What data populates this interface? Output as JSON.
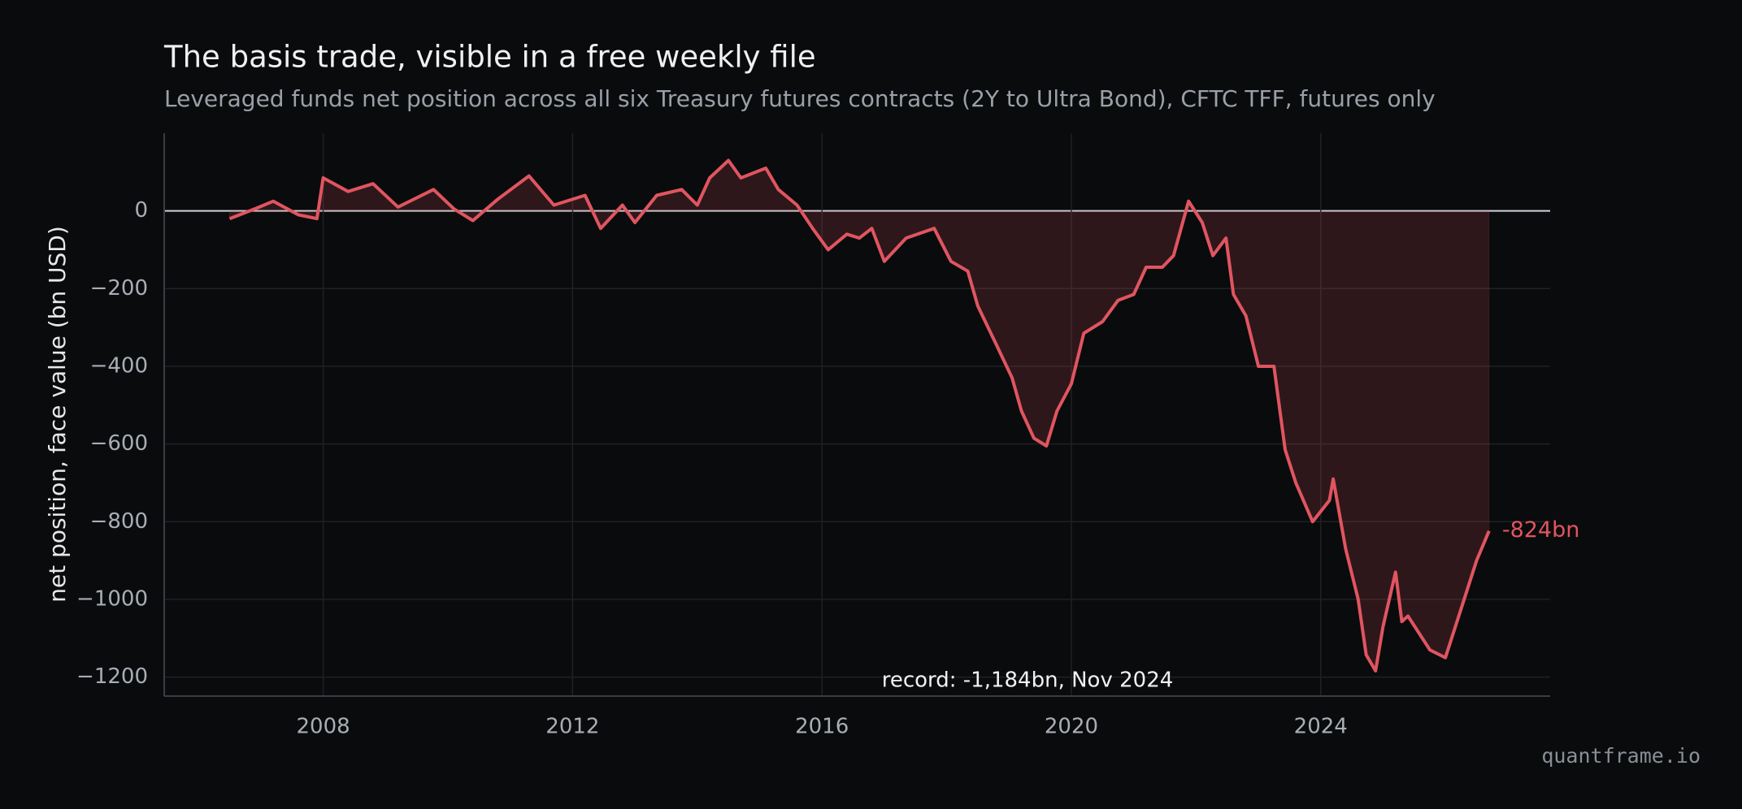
{
  "chart_data": {
    "type": "line",
    "title": "The basis trade, visible in a free weekly file",
    "subtitle": "Leveraged funds net position across all six Treasury futures contracts (2Y to Ultra Bond), CFTC TFF, futures only",
    "y_label": "net position, face value (bn USD)",
    "annotation": "record: -1,184bn, Nov 2024",
    "source": "quantframe.io",
    "x": [
      2006.5,
      2006.9,
      2007.2,
      2007.6,
      2007.9,
      2008.0,
      2008.4,
      2008.8,
      2009.2,
      2009.77,
      2010.1,
      2010.4,
      2010.8,
      2011.3,
      2011.7,
      2012.2,
      2012.45,
      2012.8,
      2013.0,
      2013.35,
      2013.75,
      2014.0,
      2014.2,
      2014.5,
      2014.7,
      2015.1,
      2015.3,
      2015.6,
      2015.85,
      2016.1,
      2016.4,
      2016.6,
      2016.8,
      2017.0,
      2017.35,
      2017.8,
      2018.07,
      2018.34,
      2018.5,
      2018.8,
      2019.05,
      2019.2,
      2019.4,
      2019.6,
      2019.77,
      2020.0,
      2020.2,
      2020.5,
      2020.75,
      2021.0,
      2021.2,
      2021.46,
      2021.64,
      2021.88,
      2022.1,
      2022.27,
      2022.48,
      2022.6,
      2022.8,
      2023.0,
      2023.25,
      2023.43,
      2023.6,
      2023.87,
      2024.14,
      2024.2,
      2024.4,
      2024.6,
      2024.73,
      2024.88,
      2025.0,
      2025.2,
      2025.3,
      2025.4,
      2025.75,
      2026.0,
      2026.3,
      2026.5,
      2026.7
    ],
    "series": [
      {
        "name": "Leveraged funds net position",
        "color": "#e05560",
        "values": [
          -20,
          5,
          25,
          -10,
          -20,
          85,
          50,
          70,
          10,
          55,
          5,
          -25,
          30,
          90,
          15,
          40,
          -45,
          15,
          -30,
          40,
          55,
          15,
          85,
          130,
          85,
          110,
          55,
          15,
          -45,
          -100,
          -60,
          -70,
          -45,
          -130,
          -70,
          -45,
          -130,
          -155,
          -245,
          -345,
          -430,
          -515,
          -585,
          -605,
          -515,
          -445,
          -315,
          -285,
          -230,
          -215,
          -145,
          -145,
          -115,
          25,
          -30,
          -115,
          -70,
          -215,
          -270,
          -400,
          -400,
          -615,
          -700,
          -800,
          -745,
          -690,
          -870,
          -1000,
          -1143,
          -1184,
          -1070,
          -930,
          -1057,
          -1043,
          -1130,
          -1150,
          -1000,
          -900,
          -824
        ],
        "value_labels": [
          null,
          null,
          null,
          null,
          null,
          null,
          null,
          null,
          null,
          null,
          null,
          null,
          null,
          null,
          null,
          null,
          null,
          null,
          null,
          null,
          null,
          null,
          null,
          null,
          null,
          null,
          null,
          null,
          null,
          null,
          null,
          null,
          null,
          null,
          null,
          null,
          null,
          null,
          null,
          null,
          null,
          null,
          null,
          null,
          null,
          null,
          null,
          null,
          null,
          null,
          null,
          null,
          null,
          null,
          null,
          null,
          null,
          null,
          null,
          null,
          null,
          null,
          null,
          null,
          null,
          null,
          null,
          null,
          null,
          null,
          null,
          null,
          null,
          null,
          null,
          null,
          null,
          null,
          "-824bn"
        ]
      }
    ],
    "xlim": [
      2005.45,
      2027.68
    ],
    "ylim": [
      -1249,
      200
    ],
    "xticks": [
      2008,
      2012,
      2016,
      2020,
      2024
    ],
    "yticks": [
      {
        "value": -1200,
        "label": "−1200"
      },
      {
        "value": -1000,
        "label": "−1000"
      },
      {
        "value": -800,
        "label": "−800"
      },
      {
        "value": -600,
        "label": "−600"
      },
      {
        "value": -400,
        "label": "−400"
      },
      {
        "value": -200,
        "label": "−200"
      },
      0
    ],
    "grid": true,
    "area": true
  }
}
